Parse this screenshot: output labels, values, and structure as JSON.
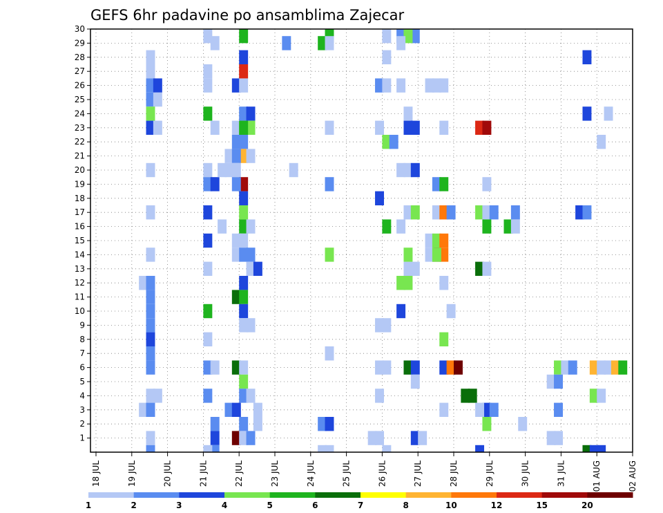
{
  "chart_data": {
    "type": "heatmap",
    "title": "GEFS 6hr padavine po ansamblima Zajecar",
    "y_categories": [
      "1",
      "2",
      "3",
      "4",
      "5",
      "6",
      "7",
      "8",
      "9",
      "10",
      "11",
      "12",
      "13",
      "14",
      "15",
      "16",
      "17",
      "18",
      "19",
      "20",
      "21",
      "22",
      "23",
      "24",
      "25",
      "26",
      "27",
      "28",
      "29",
      "30"
    ],
    "x_tick_labels": [
      "18 JUL",
      "19 JUL",
      "20 JUL",
      "21 JUL",
      "22 JUL",
      "23 JUL",
      "24 JUL",
      "25 JUL",
      "26 JUL",
      "27 JUL",
      "28 JUL",
      "29 JUL",
      "30 JUL",
      "31 JUL",
      "01 AUG",
      "02 AUG"
    ],
    "x_range": [
      0,
      60
    ],
    "y_range": [
      0,
      30
    ],
    "x_step": "6hr (4 steps per day)",
    "grid": true,
    "colorbar": {
      "labels": [
        "1",
        "2",
        "3",
        "4",
        "5",
        "6",
        "7",
        "8",
        "10",
        "12",
        "15",
        "20"
      ],
      "colors": [
        "#b4c8f5",
        "#5a8cf0",
        "#1e46dc",
        "#78e650",
        "#1eb41e",
        "#0a6e0a",
        "#ffff00",
        "#ffb432",
        "#ff780a",
        "#dc2814",
        "#a00a0a",
        "#6e0000"
      ]
    },
    "cells": [
      [
        3.5,
        28,
        1
      ],
      [
        3.5,
        27,
        1
      ],
      [
        3.5,
        26,
        2
      ],
      [
        4,
        26,
        3
      ],
      [
        3.5,
        25,
        2
      ],
      [
        4,
        25,
        1
      ],
      [
        3.5,
        24,
        4
      ],
      [
        3.5,
        23,
        3
      ],
      [
        4,
        23,
        1
      ],
      [
        3.5,
        20,
        1
      ],
      [
        3.5,
        17,
        1
      ],
      [
        3.5,
        14,
        1
      ],
      [
        3,
        12,
        1
      ],
      [
        3.5,
        12,
        2
      ],
      [
        3.5,
        11,
        2
      ],
      [
        3.5,
        10,
        2
      ],
      [
        3.5,
        9,
        2
      ],
      [
        3.5,
        8,
        3
      ],
      [
        3.5,
        7,
        2
      ],
      [
        3.5,
        6,
        2
      ],
      [
        3.5,
        4,
        1
      ],
      [
        4,
        4,
        1
      ],
      [
        3,
        3,
        1
      ],
      [
        3.5,
        3,
        2
      ],
      [
        3.5,
        1,
        1
      ],
      [
        3.5,
        0,
        2
      ],
      [
        7.5,
        30,
        1
      ],
      [
        8,
        29,
        1
      ],
      [
        7.5,
        27,
        1
      ],
      [
        7.5,
        26,
        1
      ],
      [
        7.5,
        24,
        5
      ],
      [
        8,
        23,
        1
      ],
      [
        7.5,
        20,
        1
      ],
      [
        7.5,
        19,
        2
      ],
      [
        8,
        19,
        3
      ],
      [
        7.5,
        17,
        3
      ],
      [
        7.5,
        15,
        3
      ],
      [
        7.5,
        13,
        1
      ],
      [
        7.5,
        10,
        5
      ],
      [
        7.5,
        8,
        1
      ],
      [
        7.5,
        6,
        2
      ],
      [
        8,
        6,
        1
      ],
      [
        7.5,
        4,
        2
      ],
      [
        8,
        2,
        2
      ],
      [
        8,
        1,
        3
      ],
      [
        8,
        0,
        2
      ],
      [
        7.5,
        0,
        1
      ],
      [
        8.5,
        20,
        1
      ],
      [
        9,
        21,
        1
      ],
      [
        8.5,
        16,
        1
      ],
      [
        9.5,
        26,
        3
      ],
      [
        10,
        26,
        1
      ],
      [
        9.5,
        23,
        1
      ],
      [
        10,
        23,
        4
      ],
      [
        10,
        22,
        2
      ],
      [
        9.5,
        22,
        2
      ],
      [
        10,
        21,
        8
      ],
      [
        9.5,
        21,
        2
      ],
      [
        10.5,
        21,
        1
      ],
      [
        9,
        20,
        1
      ],
      [
        9.5,
        20,
        1
      ],
      [
        10,
        19,
        11
      ],
      [
        9.5,
        19,
        2
      ],
      [
        10,
        18,
        3
      ],
      [
        10,
        17,
        4
      ],
      [
        10,
        16,
        5
      ],
      [
        10.5,
        16,
        1
      ],
      [
        9.5,
        15,
        1
      ],
      [
        10,
        15,
        1
      ],
      [
        9.5,
        14,
        1
      ],
      [
        10,
        14,
        2
      ],
      [
        10.5,
        14,
        2
      ],
      [
        10.5,
        13,
        1
      ],
      [
        11,
        13,
        3
      ],
      [
        10,
        12,
        3
      ],
      [
        9.5,
        11,
        6
      ],
      [
        10,
        11,
        5
      ],
      [
        10,
        10,
        3
      ],
      [
        10,
        9,
        1
      ],
      [
        10.5,
        9,
        1
      ],
      [
        9.5,
        6,
        6
      ],
      [
        10,
        6,
        1
      ],
      [
        10,
        5,
        4
      ],
      [
        10,
        4,
        2
      ],
      [
        10.5,
        4,
        1
      ],
      [
        9,
        3,
        2
      ],
      [
        9.5,
        3,
        3
      ],
      [
        10,
        2,
        2
      ],
      [
        9.5,
        1,
        12
      ],
      [
        10,
        1,
        1
      ],
      [
        10.5,
        1,
        2
      ],
      [
        10,
        30,
        5
      ],
      [
        10,
        28,
        3
      ],
      [
        10,
        27,
        10
      ],
      [
        10,
        24,
        2
      ],
      [
        10.5,
        24,
        3
      ],
      [
        10.5,
        23,
        4
      ],
      [
        10,
        23,
        5
      ],
      [
        11,
        2,
        1
      ],
      [
        11,
        3,
        1
      ],
      [
        13,
        29,
        2
      ],
      [
        16,
        30,
        5
      ],
      [
        15.5,
        29,
        5
      ],
      [
        16,
        29,
        1
      ],
      [
        13.5,
        20,
        1
      ],
      [
        16,
        19,
        2
      ],
      [
        16,
        14,
        4
      ],
      [
        16,
        7,
        1
      ],
      [
        15.5,
        2,
        2
      ],
      [
        16,
        2,
        3
      ],
      [
        15.5,
        0,
        1
      ],
      [
        16,
        0,
        1
      ],
      [
        16,
        23,
        1
      ],
      [
        20,
        30,
        1
      ],
      [
        20,
        28,
        1
      ],
      [
        19.5,
        26,
        2
      ],
      [
        20,
        26,
        1
      ],
      [
        19.5,
        23,
        1
      ],
      [
        20,
        22,
        4
      ],
      [
        20.5,
        22,
        2
      ],
      [
        19.5,
        18,
        3
      ],
      [
        20,
        16,
        5
      ],
      [
        19.5,
        9,
        1
      ],
      [
        20,
        9,
        1
      ],
      [
        19.5,
        6,
        1
      ],
      [
        20,
        6,
        1
      ],
      [
        19.5,
        4,
        1
      ],
      [
        19,
        1,
        1
      ],
      [
        19.5,
        1,
        1
      ],
      [
        20,
        0,
        1
      ],
      [
        21,
        30,
        2
      ],
      [
        22,
        30,
        2
      ],
      [
        21.5,
        30,
        4
      ],
      [
        21,
        29,
        1
      ],
      [
        21,
        26,
        1
      ],
      [
        21.5,
        24,
        1
      ],
      [
        21.5,
        23,
        3
      ],
      [
        22,
        23,
        3
      ],
      [
        21,
        20,
        1
      ],
      [
        21.5,
        20,
        1
      ],
      [
        22,
        20,
        3
      ],
      [
        21.5,
        17,
        1
      ],
      [
        22,
        17,
        4
      ],
      [
        21,
        16,
        1
      ],
      [
        21.5,
        13,
        1
      ],
      [
        22,
        13,
        1
      ],
      [
        21.5,
        14,
        4
      ],
      [
        21.5,
        12,
        4
      ],
      [
        21,
        12,
        4
      ],
      [
        21,
        10,
        3
      ],
      [
        21.5,
        6,
        6
      ],
      [
        22,
        6,
        3
      ],
      [
        22,
        5,
        1
      ],
      [
        22,
        1,
        3
      ],
      [
        22.5,
        1,
        1
      ],
      [
        23,
        26,
        1
      ],
      [
        24,
        26,
        1
      ],
      [
        23.5,
        26,
        1
      ],
      [
        24,
        23,
        1
      ],
      [
        23.5,
        19,
        2
      ],
      [
        24,
        19,
        5
      ],
      [
        23.5,
        17,
        1
      ],
      [
        24,
        17,
        9
      ],
      [
        24.5,
        17,
        2
      ],
      [
        23,
        15,
        1
      ],
      [
        23.5,
        15,
        4
      ],
      [
        23.5,
        14,
        12
      ],
      [
        24,
        14,
        9
      ],
      [
        24,
        15,
        9
      ],
      [
        23,
        14,
        1
      ],
      [
        24,
        12,
        1
      ],
      [
        24,
        8,
        4
      ],
      [
        24,
        6,
        3
      ],
      [
        24.5,
        6,
        9
      ],
      [
        25,
        6,
        12
      ],
      [
        24,
        3,
        1
      ],
      [
        23.5,
        14,
        4
      ],
      [
        26.5,
        23,
        10
      ],
      [
        27,
        23,
        11
      ],
      [
        27,
        19,
        1
      ],
      [
        26.5,
        17,
        4
      ],
      [
        27,
        17,
        1
      ],
      [
        27.5,
        17,
        2
      ],
      [
        27,
        16,
        5
      ],
      [
        26.5,
        13,
        6
      ],
      [
        27,
        13,
        1
      ],
      [
        24.5,
        10,
        1
      ],
      [
        26,
        4,
        6
      ],
      [
        25.5,
        4,
        6
      ],
      [
        27,
        3,
        3
      ],
      [
        27.5,
        3,
        2
      ],
      [
        27,
        2,
        4
      ],
      [
        26.5,
        3,
        1
      ],
      [
        26.5,
        0,
        3
      ],
      [
        29,
        17,
        2
      ],
      [
        28.5,
        16,
        5
      ],
      [
        29,
        16,
        1
      ],
      [
        29.5,
        2,
        1
      ],
      [
        32,
        6,
        4
      ],
      [
        32.5,
        6,
        1
      ],
      [
        33,
        6,
        2
      ],
      [
        31.5,
        5,
        1
      ],
      [
        32,
        5,
        2
      ],
      [
        32,
        3,
        2
      ],
      [
        32,
        1,
        1
      ],
      [
        31.5,
        1,
        1
      ],
      [
        34,
        24,
        3
      ],
      [
        34,
        28,
        3
      ],
      [
        33.5,
        17,
        3
      ],
      [
        34,
        17,
        2
      ],
      [
        34.5,
        6,
        8
      ],
      [
        35,
        6,
        1
      ],
      [
        35.5,
        6,
        1
      ],
      [
        36,
        6,
        8
      ],
      [
        36.5,
        6,
        5
      ],
      [
        37,
        6,
        1
      ],
      [
        34.5,
        4,
        4
      ],
      [
        35,
        4,
        1
      ],
      [
        34,
        0,
        6
      ],
      [
        34.5,
        0,
        3
      ],
      [
        35,
        0,
        3
      ],
      [
        35.5,
        24,
        1
      ],
      [
        35,
        22,
        1
      ],
      [
        37,
        29,
        2
      ],
      [
        37.5,
        29,
        1
      ],
      [
        37,
        11,
        4
      ],
      [
        37.5,
        11,
        2
      ],
      [
        37.5,
        8,
        1
      ],
      [
        39,
        26,
        1
      ],
      [
        39,
        23,
        2
      ],
      [
        39.5,
        24,
        6
      ],
      [
        40,
        24,
        2
      ],
      [
        39.5,
        23,
        1
      ],
      [
        40,
        23,
        1
      ],
      [
        40.5,
        23,
        1
      ],
      [
        40.5,
        22,
        3
      ],
      [
        39.5,
        20,
        3
      ],
      [
        39,
        10,
        1
      ],
      [
        39.5,
        10,
        1
      ],
      [
        39,
        6,
        1
      ],
      [
        39.5,
        6,
        2
      ],
      [
        40,
        6,
        1
      ],
      [
        40.5,
        6,
        3
      ],
      [
        41,
        6,
        5
      ],
      [
        40,
        5,
        2
      ],
      [
        40.5,
        5,
        2
      ],
      [
        41,
        20,
        1
      ]
    ]
  }
}
